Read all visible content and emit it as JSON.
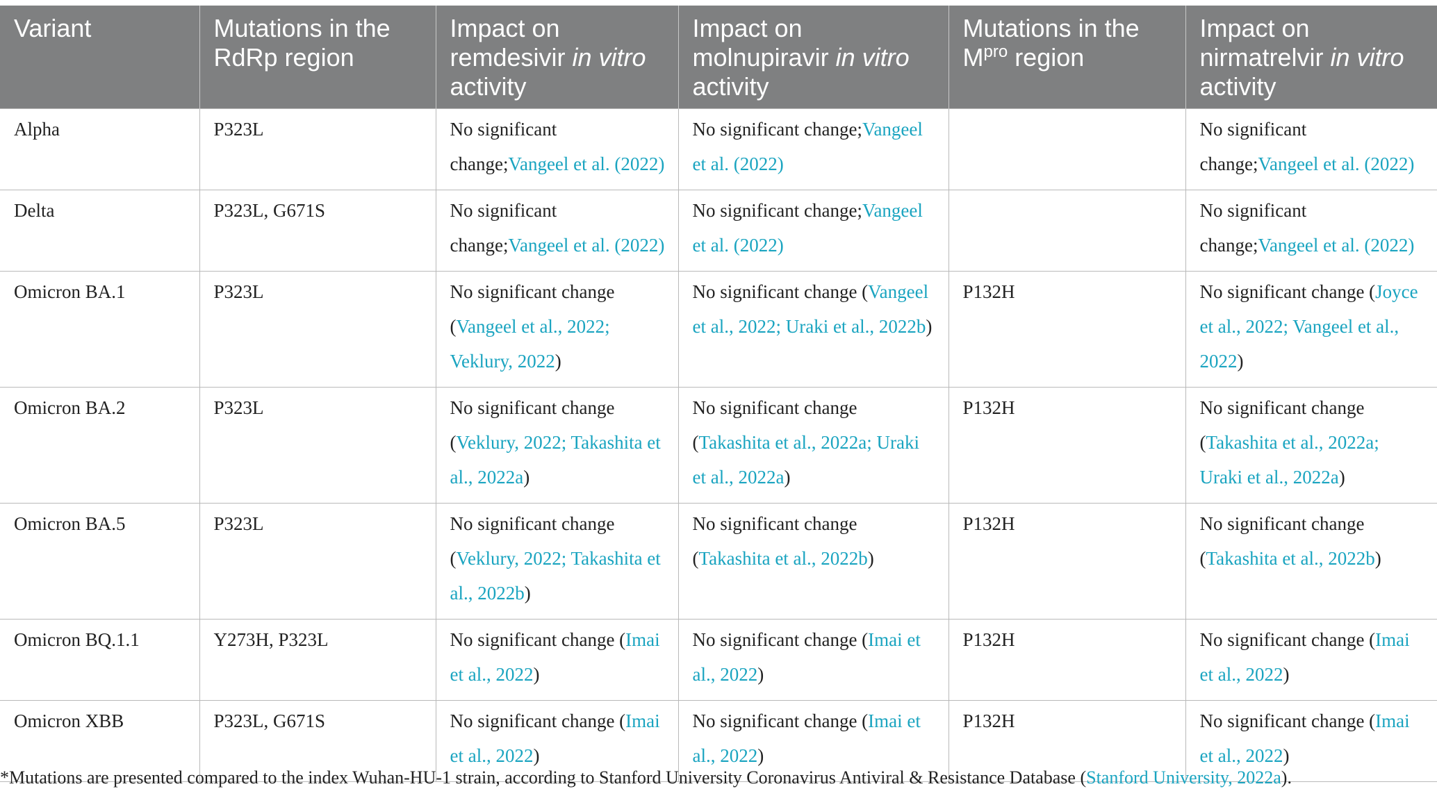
{
  "header": {
    "col1": [
      "Variant"
    ],
    "col2": [
      "Mutations in the RdRp region"
    ],
    "col3": [
      "Impact on remdesivir ",
      "in vitro",
      " activity"
    ],
    "col4": [
      "Impact on molnupiravir ",
      "in vitro",
      " activity"
    ],
    "col5": [
      "Mutations in the M",
      "pro",
      " region"
    ],
    "col6": [
      "Impact on nirmatrelvir ",
      "in vitro",
      " activity"
    ]
  },
  "rows": [
    {
      "variant": "Alpha",
      "rdrp": "P323L",
      "remdesivir": [
        "No significant change;",
        "Vangeel et al. (2022)",
        ""
      ],
      "molnupiravir": [
        "No significant change;",
        "Vangeel et al. (2022)",
        ""
      ],
      "mpro": "",
      "nirmatrelvir": [
        "No significant change;",
        "Vangeel et al. (2022)",
        ""
      ]
    },
    {
      "variant": "Delta",
      "rdrp": "P323L, G671S",
      "remdesivir": [
        "No significant change;",
        "Vangeel et al. (2022)",
        ""
      ],
      "molnupiravir": [
        "No significant change;",
        "Vangeel et al. (2022)",
        ""
      ],
      "mpro": "",
      "nirmatrelvir": [
        "No significant change;",
        "Vangeel et al. (2022)",
        ""
      ]
    },
    {
      "variant": "Omicron BA.1",
      "rdrp": "P323L",
      "remdesivir": [
        "No significant change (",
        "Vangeel et al., 2022; Veklury, 2022",
        ")"
      ],
      "molnupiravir": [
        "No significant change (",
        "Vangeel et al., 2022; Uraki et al., 2022b",
        ")"
      ],
      "mpro": "P132H",
      "nirmatrelvir": [
        "No significant change (",
        "Joyce et al., 2022; Vangeel et al., 2022",
        ")"
      ]
    },
    {
      "variant": "Omicron BA.2",
      "rdrp": "P323L",
      "remdesivir": [
        "No significant change (",
        "Veklury, 2022; Takashita et al., 2022a",
        ")"
      ],
      "molnupiravir": [
        "No significant change (",
        "Takashita et al., 2022a; Uraki et al., 2022a",
        ")"
      ],
      "mpro": "P132H",
      "nirmatrelvir": [
        "No significant change (",
        "Takashita et al., 2022a; Uraki et al., 2022a",
        ")"
      ]
    },
    {
      "variant": "Omicron BA.5",
      "rdrp": "P323L",
      "remdesivir": [
        "No significant change (",
        "Veklury, 2022; Takashita et al., 2022b",
        ")"
      ],
      "molnupiravir": [
        "No significant change (",
        "Takashita et al., 2022b",
        ")"
      ],
      "mpro": "P132H",
      "nirmatrelvir": [
        "No significant change (",
        "Takashita et al., 2022b",
        ")"
      ]
    },
    {
      "variant": "Omicron BQ.1.1",
      "rdrp": "Y273H, P323L",
      "remdesivir": [
        "No significant change (",
        "Imai et al., 2022",
        ")"
      ],
      "molnupiravir": [
        "No significant change (",
        "Imai et al., 2022",
        ")"
      ],
      "mpro": "P132H",
      "nirmatrelvir": [
        "No significant change (",
        "Imai et al., 2022",
        ")"
      ]
    },
    {
      "variant": "Omicron XBB",
      "rdrp": "P323L, G671S",
      "remdesivir": [
        "No significant change (",
        "Imai et al., 2022",
        ")"
      ],
      "molnupiravir": [
        "No significant change (",
        "Imai et al., 2022",
        ")"
      ],
      "mpro": "P132H",
      "nirmatrelvir": [
        "No significant change (",
        "Imai et al., 2022",
        ")"
      ]
    }
  ],
  "footnote": {
    "text": "*Mutations are presented compared to the index Wuhan-HU-1 strain, according to Stanford University Coronavirus Antiviral & Resistance Database (",
    "ref": "Stanford University, 2022a",
    "end": ")."
  },
  "colors": {
    "header_bg": "#7f8081",
    "link": "#1aa4c0",
    "border": "#b9b9b9"
  }
}
